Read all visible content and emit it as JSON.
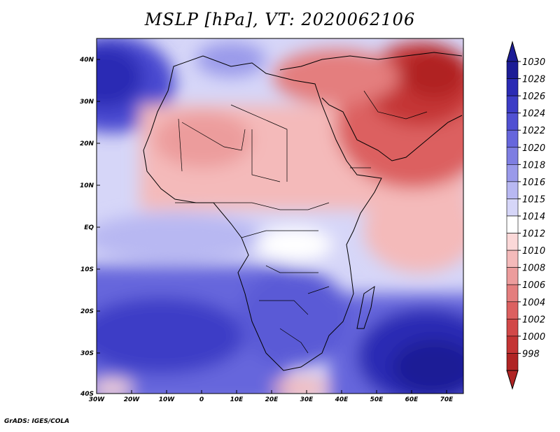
{
  "title": "MSLP [hPa], VT: 2020062106",
  "credit": "GrADS: IGES/COLA",
  "map": {
    "lon_range": [
      -30,
      75
    ],
    "lat_range": [
      -40,
      45
    ],
    "x_ticks": [
      "30W",
      "20W",
      "10W",
      "0",
      "10E",
      "20E",
      "30E",
      "40E",
      "50E",
      "60E",
      "70E"
    ],
    "y_ticks": [
      "40N",
      "30N",
      "20N",
      "10N",
      "EQ",
      "10S",
      "20S",
      "30S",
      "40S"
    ]
  },
  "colorbar": {
    "labels": [
      "1030",
      "1028",
      "1026",
      "1024",
      "1022",
      "1020",
      "1018",
      "1016",
      "1015",
      "1014",
      "1012",
      "1010",
      "1008",
      "1006",
      "1004",
      "1002",
      "1000",
      "998"
    ],
    "colors": [
      "#1c1c96",
      "#2a2ab4",
      "#3c3cc6",
      "#5050d2",
      "#6666dc",
      "#7e7ee2",
      "#9a9aea",
      "#b8b8f2",
      "#d6d6f8",
      "#ffffff",
      "#fbd8d8",
      "#f4baba",
      "#ec9c9c",
      "#e47e7e",
      "#dc6060",
      "#d24848",
      "#c43434",
      "#b02424"
    ]
  }
}
